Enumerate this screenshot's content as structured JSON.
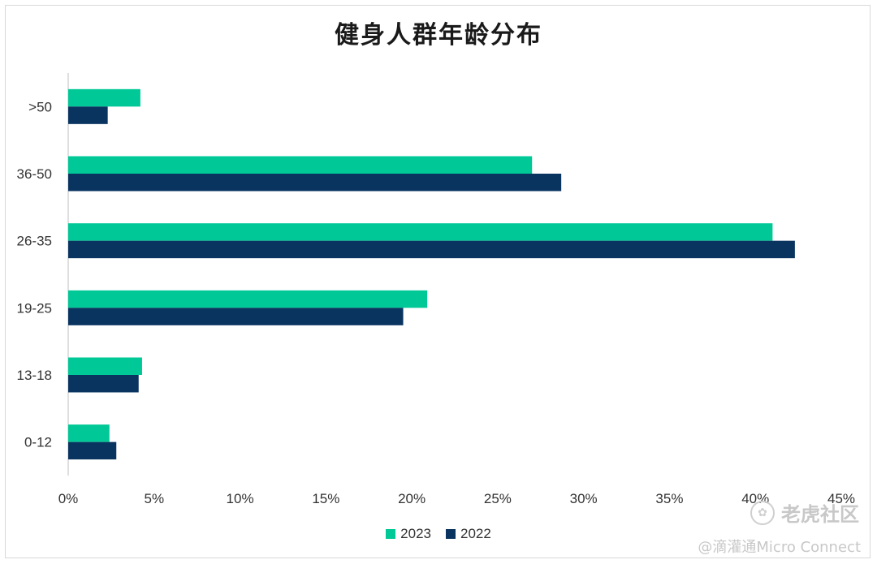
{
  "chart_data": {
    "type": "bar",
    "orientation": "horizontal",
    "title": "健身人群年龄分布",
    "categories": [
      ">50",
      "36-50",
      "26-35",
      "19-25",
      "13-18",
      "0-12"
    ],
    "series": [
      {
        "name": "2023",
        "color": "#00c896",
        "values": [
          4.2,
          27.0,
          41.0,
          20.9,
          4.3,
          2.4
        ]
      },
      {
        "name": "2022",
        "color": "#0a3460",
        "values": [
          2.3,
          28.7,
          42.3,
          19.5,
          4.1,
          2.8
        ]
      }
    ],
    "x_ticks": [
      "0%",
      "5%",
      "10%",
      "15%",
      "20%",
      "25%",
      "30%",
      "35%",
      "40%",
      "45%"
    ],
    "xlim": [
      0,
      45
    ],
    "grid": false,
    "legend_position": "bottom"
  },
  "watermark": {
    "logo_text": "老虎社区",
    "handle": "@滴灌通Micro Connect"
  }
}
